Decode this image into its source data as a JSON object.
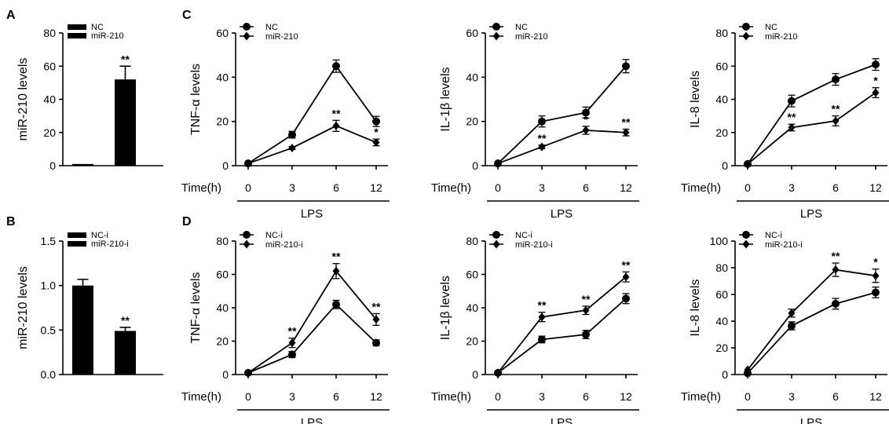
{
  "chart_data": [
    {
      "id": "A",
      "panel_label": "A",
      "type": "bar",
      "categories": [
        "NC",
        "miR-210"
      ],
      "values": [
        1.0,
        52
      ],
      "errors": [
        0,
        8
      ],
      "significance": [
        "",
        "**"
      ],
      "ylabel": "miR-210 levels",
      "ylim": [
        0,
        80
      ],
      "yticks": [
        "0",
        "20",
        "40",
        "60",
        "80"
      ],
      "legend": [
        "NC",
        "miR-210"
      ],
      "legend_placement": "top-left"
    },
    {
      "id": "B",
      "panel_label": "B",
      "type": "bar",
      "categories": [
        "NC-i",
        "miR-210-i"
      ],
      "values": [
        1.0,
        0.49
      ],
      "errors": [
        0.07,
        0.04
      ],
      "significance": [
        "",
        "**"
      ],
      "ylabel": "miR-210 levels",
      "ylim": [
        0,
        1.5
      ],
      "yticks": [
        "0.0",
        "0.5",
        "1.0",
        "1.5"
      ],
      "legend": [
        "NC-i",
        "miR-210-i"
      ],
      "legend_placement": "top-left"
    },
    {
      "id": "C1",
      "panel_label": "C",
      "type": "line",
      "x": [
        "0",
        "3",
        "6",
        "12"
      ],
      "xprefix": "Time(h)",
      "group_label": "LPS",
      "ylabel": "TNF-α levels",
      "ylim": [
        0,
        60
      ],
      "yticks": [
        "0",
        "20",
        "40",
        "60"
      ],
      "series": [
        {
          "name": "NC",
          "marker": "circle",
          "values": [
            1,
            14,
            45,
            20
          ],
          "errors": [
            0.5,
            1.5,
            2.8,
            2.3
          ],
          "stars": [
            "",
            "",
            "",
            ""
          ]
        },
        {
          "name": "miR-210",
          "marker": "diamond",
          "values": [
            1,
            8,
            18,
            10.5
          ],
          "errors": [
            0.5,
            0.7,
            2.5,
            1.5
          ],
          "stars": [
            "",
            "",
            "**",
            "*"
          ]
        }
      ],
      "legend_placement": "top-left"
    },
    {
      "id": "C2",
      "panel_label": "",
      "type": "line",
      "x": [
        "0",
        "3",
        "6",
        "12"
      ],
      "xprefix": "Time(h)",
      "group_label": "LPS",
      "ylabel": "IL-1β levels",
      "ylim": [
        0,
        60
      ],
      "yticks": [
        "0",
        "20",
        "40",
        "60"
      ],
      "series": [
        {
          "name": "NC",
          "marker": "circle",
          "values": [
            1,
            20,
            24,
            45
          ],
          "errors": [
            0.5,
            2.5,
            2.5,
            3.0
          ],
          "stars": [
            "",
            "",
            "",
            ""
          ]
        },
        {
          "name": "miR-210",
          "marker": "diamond",
          "values": [
            1,
            8.5,
            16,
            15
          ],
          "errors": [
            0.5,
            0.8,
            1.8,
            1.5
          ],
          "stars": [
            "",
            "**",
            "*",
            "**"
          ]
        }
      ],
      "legend_placement": "top-left"
    },
    {
      "id": "C3",
      "panel_label": "",
      "type": "line",
      "x": [
        "0",
        "3",
        "6",
        "12"
      ],
      "xprefix": "Time(h)",
      "group_label": "LPS",
      "ylabel": "IL-8 levels",
      "ylim": [
        0,
        80
      ],
      "yticks": [
        "0",
        "20",
        "40",
        "60",
        "80"
      ],
      "series": [
        {
          "name": "NC",
          "marker": "circle",
          "values": [
            1,
            39,
            52,
            61
          ],
          "errors": [
            0.5,
            3.5,
            3.5,
            3.5
          ],
          "stars": [
            "",
            "",
            "",
            ""
          ]
        },
        {
          "name": "miR-210",
          "marker": "diamond",
          "values": [
            1,
            23,
            27,
            44
          ],
          "errors": [
            0.5,
            2.0,
            3.0,
            3.0
          ],
          "stars": [
            "",
            "**",
            "**",
            "*"
          ]
        }
      ],
      "legend_placement": "top-left"
    },
    {
      "id": "D1",
      "panel_label": "D",
      "type": "line",
      "x": [
        "0",
        "3",
        "6",
        "12"
      ],
      "xprefix": "Time(h)",
      "group_label": "LPS",
      "ylabel": "TNF-α levels",
      "ylim": [
        0,
        80
      ],
      "yticks": [
        "0",
        "20",
        "40",
        "60",
        "80"
      ],
      "series": [
        {
          "name": "NC-i",
          "marker": "circle",
          "values": [
            1,
            12,
            42,
            19
          ],
          "errors": [
            0.5,
            1.8,
            2.5,
            1.8
          ],
          "stars": [
            "",
            "",
            "",
            ""
          ]
        },
        {
          "name": "miR-210-i",
          "marker": "diamond",
          "values": [
            1,
            19,
            62,
            33
          ],
          "errors": [
            0.5,
            2.8,
            4.5,
            3.5
          ],
          "stars": [
            "",
            "**",
            "**",
            "**"
          ]
        }
      ],
      "legend_placement": "top-left"
    },
    {
      "id": "D2",
      "panel_label": "",
      "type": "line",
      "x": [
        "0",
        "3",
        "6",
        "12"
      ],
      "xprefix": "Time(h)",
      "group_label": "LPS",
      "ylabel": "IL-1β levels",
      "ylim": [
        0,
        80
      ],
      "yticks": [
        "0",
        "20",
        "40",
        "60",
        "80"
      ],
      "series": [
        {
          "name": "NC-i",
          "marker": "circle",
          "values": [
            1,
            21,
            24,
            45.5
          ],
          "errors": [
            0.5,
            2.0,
            2.5,
            3.0
          ],
          "stars": [
            "",
            "",
            "",
            ""
          ]
        },
        {
          "name": "miR-210-i",
          "marker": "diamond",
          "values": [
            1,
            34.5,
            38.5,
            58.5
          ],
          "errors": [
            0.5,
            2.8,
            2.5,
            3.0
          ],
          "stars": [
            "",
            "**",
            "**",
            "**"
          ]
        }
      ],
      "legend_placement": "top-left"
    },
    {
      "id": "D3",
      "panel_label": "",
      "type": "line",
      "x": [
        "0",
        "3",
        "6",
        "12"
      ],
      "xprefix": "Time(h)",
      "group_label": "LPS",
      "ylabel": "IL-8 levels",
      "ylim": [
        0,
        100
      ],
      "yticks": [
        "0",
        "20",
        "40",
        "60",
        "80",
        "100"
      ],
      "series": [
        {
          "name": "NC-i",
          "marker": "circle",
          "values": [
            1,
            36.5,
            53,
            61.5
          ],
          "errors": [
            0.5,
            3.0,
            4.0,
            4.0
          ],
          "stars": [
            "",
            "",
            "",
            ""
          ]
        },
        {
          "name": "miR-210-i",
          "marker": "diamond",
          "values": [
            3.5,
            46,
            78.5,
            74
          ],
          "errors": [
            0.5,
            3.0,
            5.0,
            5.0
          ],
          "stars": [
            "",
            "",
            "**",
            "*"
          ]
        }
      ],
      "legend_placement": "top-left"
    }
  ]
}
